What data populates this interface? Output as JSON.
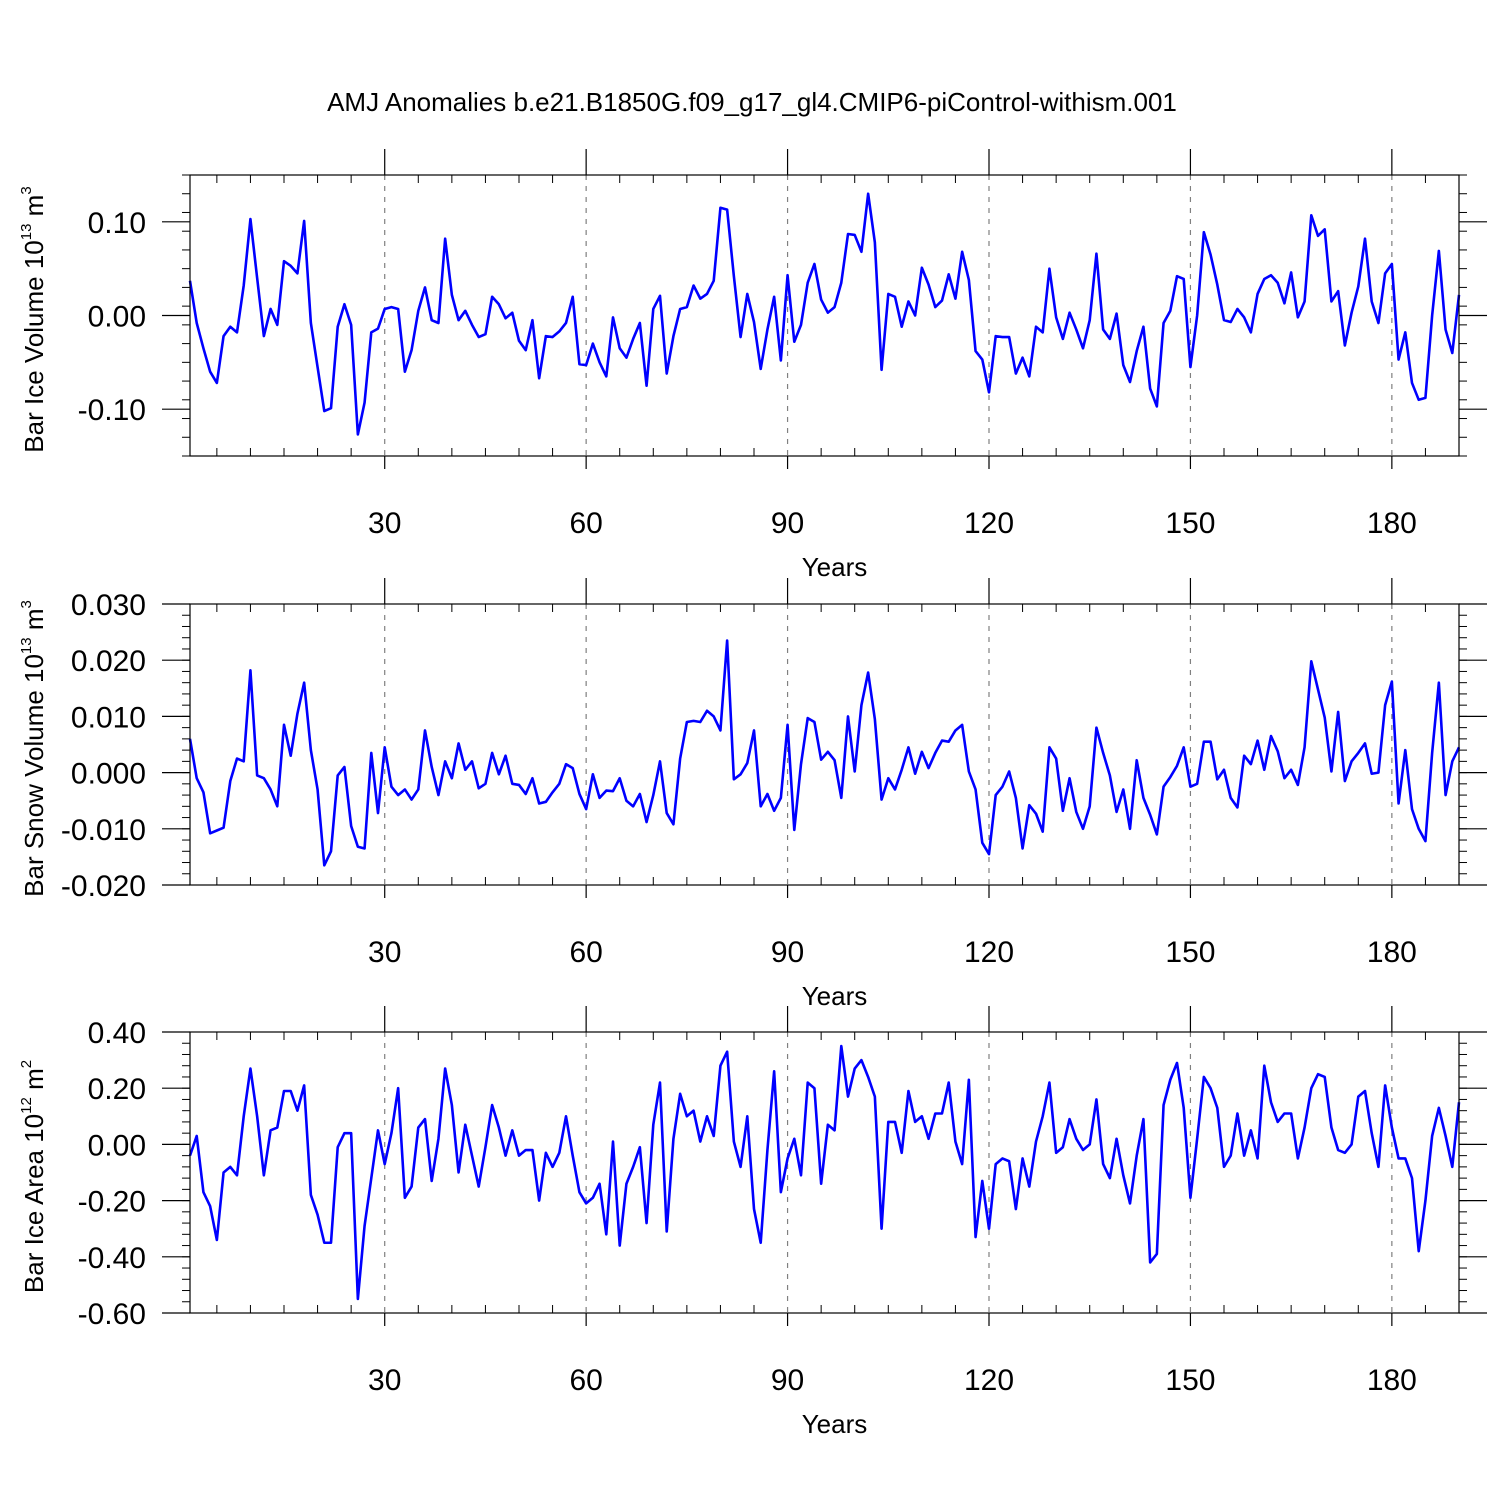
{
  "title": "AMJ Anomalies b.e21.B1850G.f09_g17_gl4.CMIP6-piControl-withism.001",
  "colors": {
    "line": "#0000ff",
    "axis": "#000000",
    "grid": "#808080"
  },
  "chart_data": [
    {
      "type": "line",
      "xlabel": "Years",
      "ylabel_main": "Bar Ice Volume 10",
      "ylabel_exp": "13",
      "ylabel_unit": " m",
      "ylabel_unit_exp": "3",
      "xlim": [
        1,
        190
      ],
      "ylim": [
        -0.15,
        0.15
      ],
      "xticks": [
        30,
        60,
        90,
        120,
        150,
        180
      ],
      "xtick_labels": [
        "30",
        "60",
        "90",
        "120",
        "150",
        "180"
      ],
      "yticks": [
        -0.1,
        0.0,
        0.1
      ],
      "ytick_labels": [
        "-0.10",
        "0.00",
        "0.10"
      ],
      "grid": "vertical dashed at major x ticks",
      "series": [
        {
          "x_start": 1,
          "values": [
            0.037,
            -0.008,
            -0.035,
            -0.06,
            -0.072,
            -0.022,
            -0.012,
            -0.018,
            0.032,
            0.103,
            0.04,
            -0.022,
            0.007,
            -0.01,
            0.058,
            0.053,
            0.045,
            0.101,
            -0.008,
            -0.055,
            -0.102,
            -0.099,
            -0.012,
            0.012,
            -0.01,
            -0.127,
            -0.093,
            -0.018,
            -0.014,
            0.007,
            0.009,
            0.007,
            -0.06,
            -0.037,
            0.005,
            0.03,
            -0.005,
            -0.008,
            0.082,
            0.022,
            -0.005,
            0.005,
            -0.01,
            -0.023,
            -0.02,
            0.02,
            0.012,
            -0.003,
            0.003,
            -0.027,
            -0.037,
            -0.005,
            -0.067,
            -0.022,
            -0.023,
            -0.017,
            -0.008,
            0.02,
            -0.052,
            -0.053,
            -0.03,
            -0.05,
            -0.065,
            -0.002,
            -0.035,
            -0.045,
            -0.025,
            -0.008,
            -0.075,
            0.007,
            0.021,
            -0.062,
            -0.022,
            0.007,
            0.009,
            0.032,
            0.018,
            0.023,
            0.037,
            0.115,
            0.113,
            0.042,
            -0.023,
            0.023,
            -0.007,
            -0.057,
            -0.015,
            0.02,
            -0.048,
            0.043,
            -0.028,
            -0.01,
            0.035,
            0.055,
            0.017,
            0.003,
            0.009,
            0.035,
            0.087,
            0.086,
            0.068,
            0.13,
            0.078,
            -0.058,
            0.023,
            0.02,
            -0.012,
            0.015,
            0.0,
            0.051,
            0.033,
            0.009,
            0.016,
            0.044,
            0.018,
            0.068,
            0.038,
            -0.038,
            -0.047,
            -0.082,
            -0.022,
            -0.023,
            -0.023,
            -0.062,
            -0.045,
            -0.065,
            -0.012,
            -0.018,
            0.05,
            -0.002,
            -0.025,
            0.003,
            -0.015,
            -0.035,
            -0.005,
            0.066,
            -0.015,
            -0.025,
            0.002,
            -0.053,
            -0.071,
            -0.038,
            -0.012,
            -0.078,
            -0.097,
            -0.008,
            0.005,
            0.042,
            0.039,
            -0.055,
            0.0,
            0.089,
            0.065,
            0.033,
            -0.005,
            -0.007,
            0.007,
            -0.002,
            -0.018,
            0.023,
            0.039,
            0.043,
            0.035,
            0.013,
            0.046,
            -0.002,
            0.015,
            0.107,
            0.085,
            0.092,
            0.015,
            0.026,
            -0.032,
            0.003,
            0.031,
            0.082,
            0.015,
            -0.008,
            0.045,
            0.055,
            -0.047,
            -0.018,
            -0.072,
            -0.09,
            -0.088,
            0.0,
            0.069,
            -0.015,
            -0.04,
            0.022
          ]
        }
      ]
    },
    {
      "type": "line",
      "xlabel": "Years",
      "ylabel_main": "Bar Snow Volume 10",
      "ylabel_exp": "13",
      "ylabel_unit": " m",
      "ylabel_unit_exp": "3",
      "xlim": [
        1,
        190
      ],
      "ylim": [
        -0.02,
        0.03
      ],
      "xticks": [
        30,
        60,
        90,
        120,
        150,
        180
      ],
      "xtick_labels": [
        "30",
        "60",
        "90",
        "120",
        "150",
        "180"
      ],
      "yticks": [
        -0.02,
        -0.01,
        0.0,
        0.01,
        0.02,
        0.03
      ],
      "ytick_labels": [
        "-0.020",
        "-0.010",
        "0.000",
        "0.010",
        "0.020",
        "0.030"
      ],
      "grid": "vertical dashed at major x ticks",
      "series": [
        {
          "x_start": 1,
          "values": [
            0.006,
            -0.001,
            -0.0035,
            -0.0108,
            -0.0103,
            -0.0098,
            -0.0015,
            0.0025,
            0.002,
            0.0182,
            -0.0005,
            -0.001,
            -0.003,
            -0.006,
            0.0085,
            0.003,
            0.0105,
            0.016,
            0.004,
            -0.003,
            -0.0165,
            -0.014,
            -0.0005,
            0.001,
            -0.0095,
            -0.0132,
            -0.0135,
            0.0035,
            -0.0072,
            0.0045,
            -0.0025,
            -0.004,
            -0.003,
            -0.0048,
            -0.003,
            0.0075,
            0.001,
            -0.004,
            0.002,
            -0.001,
            0.0052,
            0.0005,
            0.002,
            -0.0028,
            -0.002,
            0.0035,
            -0.0003,
            0.003,
            -0.002,
            -0.0022,
            -0.0038,
            -0.001,
            -0.0055,
            -0.0052,
            -0.0035,
            -0.002,
            0.0015,
            0.0008,
            -0.0038,
            -0.0065,
            -0.0003,
            -0.0045,
            -0.0032,
            -0.0033,
            -0.001,
            -0.005,
            -0.006,
            -0.0038,
            -0.0088,
            -0.004,
            0.002,
            -0.0072,
            -0.0092,
            0.0025,
            0.009,
            0.0092,
            0.009,
            0.011,
            0.01,
            0.0075,
            0.0235,
            -0.0012,
            -0.0003,
            0.0017,
            0.0075,
            -0.006,
            -0.0038,
            -0.0068,
            -0.0045,
            0.0085,
            -0.0102,
            0.0015,
            0.0097,
            0.009,
            0.0023,
            0.0037,
            0.0022,
            -0.0045,
            0.01,
            0.0002,
            0.012,
            0.0178,
            0.0095,
            -0.0048,
            -0.001,
            -0.003,
            0.0005,
            0.0045,
            -0.0002,
            0.0037,
            0.0008,
            0.0035,
            0.0057,
            0.0055,
            0.0075,
            0.0085,
            0.0002,
            -0.003,
            -0.0125,
            -0.0145,
            -0.004,
            -0.0025,
            0.0002,
            -0.0045,
            -0.0135,
            -0.0058,
            -0.0073,
            -0.0105,
            0.0045,
            0.0025,
            -0.0068,
            -0.001,
            -0.007,
            -0.01,
            -0.006,
            0.008,
            0.0035,
            -0.0005,
            -0.007,
            -0.003,
            -0.01,
            0.0022,
            -0.0045,
            -0.0075,
            -0.011,
            -0.0025,
            -0.0008,
            0.0012,
            0.0045,
            -0.0025,
            -0.002,
            0.0055,
            0.0055,
            -0.0012,
            0.0005,
            -0.0045,
            -0.0062,
            0.003,
            0.0015,
            0.0057,
            0.0005,
            0.0065,
            0.0038,
            -0.001,
            0.0005,
            -0.0022,
            0.0045,
            0.0198,
            0.0148,
            0.0098,
            0.0002,
            0.0108,
            -0.0015,
            0.002,
            0.0035,
            0.0052,
            -0.0002,
            0.0,
            0.012,
            0.0162,
            -0.0055,
            0.004,
            -0.0065,
            -0.01,
            -0.0122,
            0.0035,
            0.016,
            -0.004,
            0.002,
            0.0045
          ]
        }
      ]
    },
    {
      "type": "line",
      "xlabel": "Years",
      "ylabel_main": "Bar Ice Area 10",
      "ylabel_exp": "12",
      "ylabel_unit": " m",
      "ylabel_unit_exp": "2",
      "xlim": [
        1,
        190
      ],
      "ylim": [
        -0.6,
        0.4
      ],
      "xticks": [
        30,
        60,
        90,
        120,
        150,
        180
      ],
      "xtick_labels": [
        "30",
        "60",
        "90",
        "120",
        "150",
        "180"
      ],
      "yticks": [
        -0.6,
        -0.4,
        -0.2,
        0.0,
        0.2,
        0.4
      ],
      "ytick_labels": [
        "-0.60",
        "-0.40",
        "-0.20",
        "0.00",
        "0.20",
        "0.40"
      ],
      "grid": "vertical dashed at major x ticks",
      "series": [
        {
          "x_start": 1,
          "values": [
            -0.04,
            0.03,
            -0.17,
            -0.22,
            -0.34,
            -0.1,
            -0.08,
            -0.11,
            0.1,
            0.27,
            0.1,
            -0.11,
            0.05,
            0.06,
            0.19,
            0.19,
            0.12,
            0.21,
            -0.18,
            -0.25,
            -0.35,
            -0.35,
            -0.01,
            0.04,
            0.04,
            -0.55,
            -0.29,
            -0.12,
            0.05,
            -0.07,
            0.04,
            0.2,
            -0.19,
            -0.15,
            0.06,
            0.09,
            -0.13,
            0.02,
            0.27,
            0.14,
            -0.1,
            0.07,
            -0.04,
            -0.15,
            -0.01,
            0.14,
            0.06,
            -0.04,
            0.05,
            -0.04,
            -0.02,
            -0.02,
            -0.2,
            -0.03,
            -0.08,
            -0.03,
            0.1,
            -0.04,
            -0.17,
            -0.21,
            -0.19,
            -0.14,
            -0.32,
            0.01,
            -0.36,
            -0.14,
            -0.08,
            -0.01,
            -0.28,
            0.07,
            0.22,
            -0.31,
            0.02,
            0.18,
            0.1,
            0.12,
            0.01,
            0.1,
            0.03,
            0.28,
            0.33,
            0.01,
            -0.08,
            0.1,
            -0.23,
            -0.35,
            -0.02,
            0.26,
            -0.17,
            -0.05,
            0.02,
            -0.11,
            0.22,
            0.2,
            -0.14,
            0.07,
            0.05,
            0.35,
            0.17,
            0.27,
            0.3,
            0.24,
            0.17,
            -0.3,
            0.08,
            0.08,
            -0.03,
            0.19,
            0.08,
            0.1,
            0.02,
            0.11,
            0.11,
            0.22,
            0.01,
            -0.07,
            0.23,
            -0.33,
            -0.13,
            -0.3,
            -0.07,
            -0.05,
            -0.06,
            -0.23,
            -0.05,
            -0.15,
            0.01,
            0.1,
            0.22,
            -0.03,
            -0.01,
            0.09,
            0.02,
            -0.02,
            0.0,
            0.16,
            -0.07,
            -0.12,
            0.02,
            -0.11,
            -0.21,
            -0.04,
            0.09,
            -0.42,
            -0.39,
            0.14,
            0.23,
            0.29,
            0.13,
            -0.19,
            0.02,
            0.24,
            0.2,
            0.13,
            -0.08,
            -0.04,
            0.11,
            -0.04,
            0.05,
            -0.05,
            0.28,
            0.15,
            0.08,
            0.11,
            0.11,
            -0.05,
            0.06,
            0.2,
            0.25,
            0.24,
            0.06,
            -0.02,
            -0.03,
            0.0,
            0.17,
            0.19,
            0.04,
            -0.08,
            0.21,
            0.06,
            -0.05,
            -0.05,
            -0.12,
            -0.38,
            -0.2,
            0.03,
            0.13,
            0.03,
            -0.08,
            0.15
          ]
        }
      ]
    }
  ]
}
